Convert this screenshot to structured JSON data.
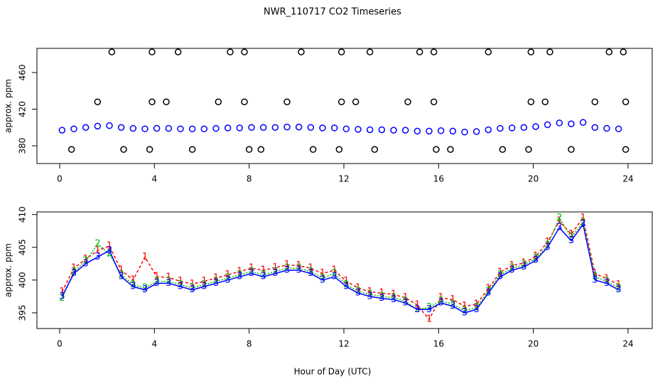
{
  "chart_data": [
    {
      "type": "scatter",
      "title": "NWR_110717  CO2 Timeseries",
      "ylabel": "approx. ppm",
      "xlim": [
        -0.96,
        25.02
      ],
      "ylim": [
        360.6,
        486.4
      ],
      "xticks": [
        0,
        4,
        8,
        12,
        16,
        20,
        24
      ],
      "yticks": [
        380,
        420,
        460
      ],
      "series": [
        {
          "color": "#0000ff",
          "marker": "circle",
          "x": [
            0.1,
            0.6,
            1.1,
            1.6,
            2.1,
            2.6,
            3.1,
            3.6,
            4.1,
            4.6,
            5.1,
            5.6,
            6.1,
            6.6,
            7.1,
            7.6,
            8.1,
            8.6,
            9.1,
            9.6,
            10.1,
            10.6,
            11.1,
            11.6,
            12.1,
            12.6,
            13.1,
            13.6,
            14.1,
            14.6,
            15.1,
            15.6,
            16.1,
            16.6,
            17.1,
            17.6,
            18.1,
            18.6,
            19.1,
            19.6,
            20.1,
            20.6,
            21.1,
            21.6,
            22.1,
            22.6,
            23.1,
            23.6
          ],
          "values": [
            397,
            398.5,
            400,
            401.5,
            402,
            400,
            399,
            398.5,
            399,
            399,
            398.5,
            398.5,
            398.5,
            399,
            399.5,
            399.5,
            400,
            400,
            400,
            400.5,
            400.5,
            400,
            399.5,
            399.5,
            398.5,
            398,
            397.5,
            397.5,
            397,
            397,
            396,
            396,
            396.5,
            396,
            395,
            395.5,
            397.5,
            399,
            399.5,
            400,
            401,
            403,
            405,
            404,
            405.5,
            400,
            399,
            398.5
          ]
        },
        {
          "color": "#000000",
          "marker": "circle",
          "x": [
            2.2,
            3.9,
            5.0,
            7.2,
            7.8,
            10.2,
            11.9,
            13.1,
            15.2,
            15.8,
            18.1,
            19.9,
            20.7,
            23.2,
            23.8,
            1.6,
            3.9,
            4.5,
            6.7,
            7.8,
            9.6,
            11.9,
            12.5,
            14.7,
            15.8,
            19.9,
            20.5,
            22.6,
            23.9,
            0.5,
            2.7,
            3.8,
            5.6,
            8.0,
            8.5,
            10.7,
            11.8,
            13.3,
            15.9,
            16.5,
            18.7,
            19.8,
            21.6,
            23.9
          ],
          "values": [
            482.5,
            482.5,
            482.5,
            482.5,
            482.5,
            482.5,
            482.5,
            482.5,
            482.5,
            482.5,
            482.5,
            482.5,
            482.5,
            482.5,
            482.5,
            428,
            428,
            428,
            428,
            428,
            428,
            428,
            428,
            428,
            428,
            428,
            428,
            428,
            428,
            376,
            376,
            376,
            376,
            376,
            376,
            376,
            376,
            376,
            376,
            376,
            376,
            376,
            376,
            376
          ]
        }
      ]
    },
    {
      "type": "line",
      "ylabel": "approx. ppm",
      "xlabel": "Hour of Day (UTC)",
      "xlim": [
        -0.96,
        25.02
      ],
      "ylim": [
        392.6,
        410.4
      ],
      "xticks": [
        0,
        4,
        8,
        12,
        16,
        20,
        24
      ],
      "yticks": [
        395,
        400,
        405,
        410
      ],
      "x": [
        0.1,
        0.6,
        1.1,
        1.6,
        2.1,
        2.6,
        3.1,
        3.6,
        4.1,
        4.6,
        5.1,
        5.6,
        6.1,
        6.6,
        7.1,
        7.6,
        8.1,
        8.6,
        9.1,
        9.6,
        10.1,
        10.6,
        11.1,
        11.6,
        12.1,
        12.6,
        13.1,
        13.6,
        14.1,
        14.6,
        15.1,
        15.6,
        16.1,
        16.6,
        17.1,
        17.6,
        18.1,
        18.6,
        19.1,
        19.6,
        20.1,
        20.6,
        21.1,
        21.6,
        22.1,
        22.6,
        23.1,
        23.6
      ],
      "series": [
        {
          "name": "1",
          "color": "#ff0000",
          "values": [
            398.2,
            401.8,
            403.2,
            404.5,
            405.2,
            401.5,
            400,
            403.5,
            400.5,
            400.4,
            399.8,
            399.4,
            399.8,
            400.3,
            400.8,
            401.3,
            401.8,
            401.5,
            401.9,
            402.3,
            402.2,
            401.8,
            401,
            401.5,
            399.8,
            398.8,
            398.2,
            398,
            397.8,
            397.3,
            396.2,
            394,
            397.3,
            397,
            396,
            396.3,
            398.7,
            401.2,
            402.2,
            402.6,
            403.6,
            405.8,
            409,
            407,
            409.5,
            401,
            400.2,
            399.3
          ]
        },
        {
          "name": "2",
          "color": "#00bb00",
          "values": [
            397.2,
            401.3,
            402.9,
            405.5,
            404,
            400.8,
            399.3,
            398.8,
            399.8,
            399.8,
            399.3,
            398.8,
            399.3,
            399.8,
            400.3,
            400.8,
            401.3,
            400.8,
            401.3,
            401.8,
            401.8,
            401.3,
            400.3,
            401,
            399.3,
            398.3,
            397.8,
            397.5,
            397.3,
            396.8,
            395.5,
            395.8,
            396.8,
            396.3,
            395.3,
            395.8,
            398.3,
            400.8,
            401.8,
            402.3,
            403.3,
            405.3,
            409.5,
            406.5,
            408.8,
            400.5,
            399.8,
            398.8
          ]
        },
        {
          "name": "3",
          "color": "#0000ff",
          "values": [
            397.5,
            401,
            402.5,
            403.5,
            404.5,
            400.5,
            399,
            398.5,
            399.5,
            399.5,
            399,
            398.5,
            399,
            399.5,
            400,
            400.5,
            401,
            400.5,
            401,
            401.5,
            401.5,
            401,
            400,
            400.5,
            399,
            398,
            397.5,
            397.2,
            397,
            396.5,
            395.5,
            395.5,
            396.5,
            396,
            395,
            395.5,
            398,
            400.5,
            401.5,
            402,
            403,
            405,
            408,
            406,
            408.5,
            400,
            399.5,
            398.5
          ]
        }
      ]
    }
  ]
}
